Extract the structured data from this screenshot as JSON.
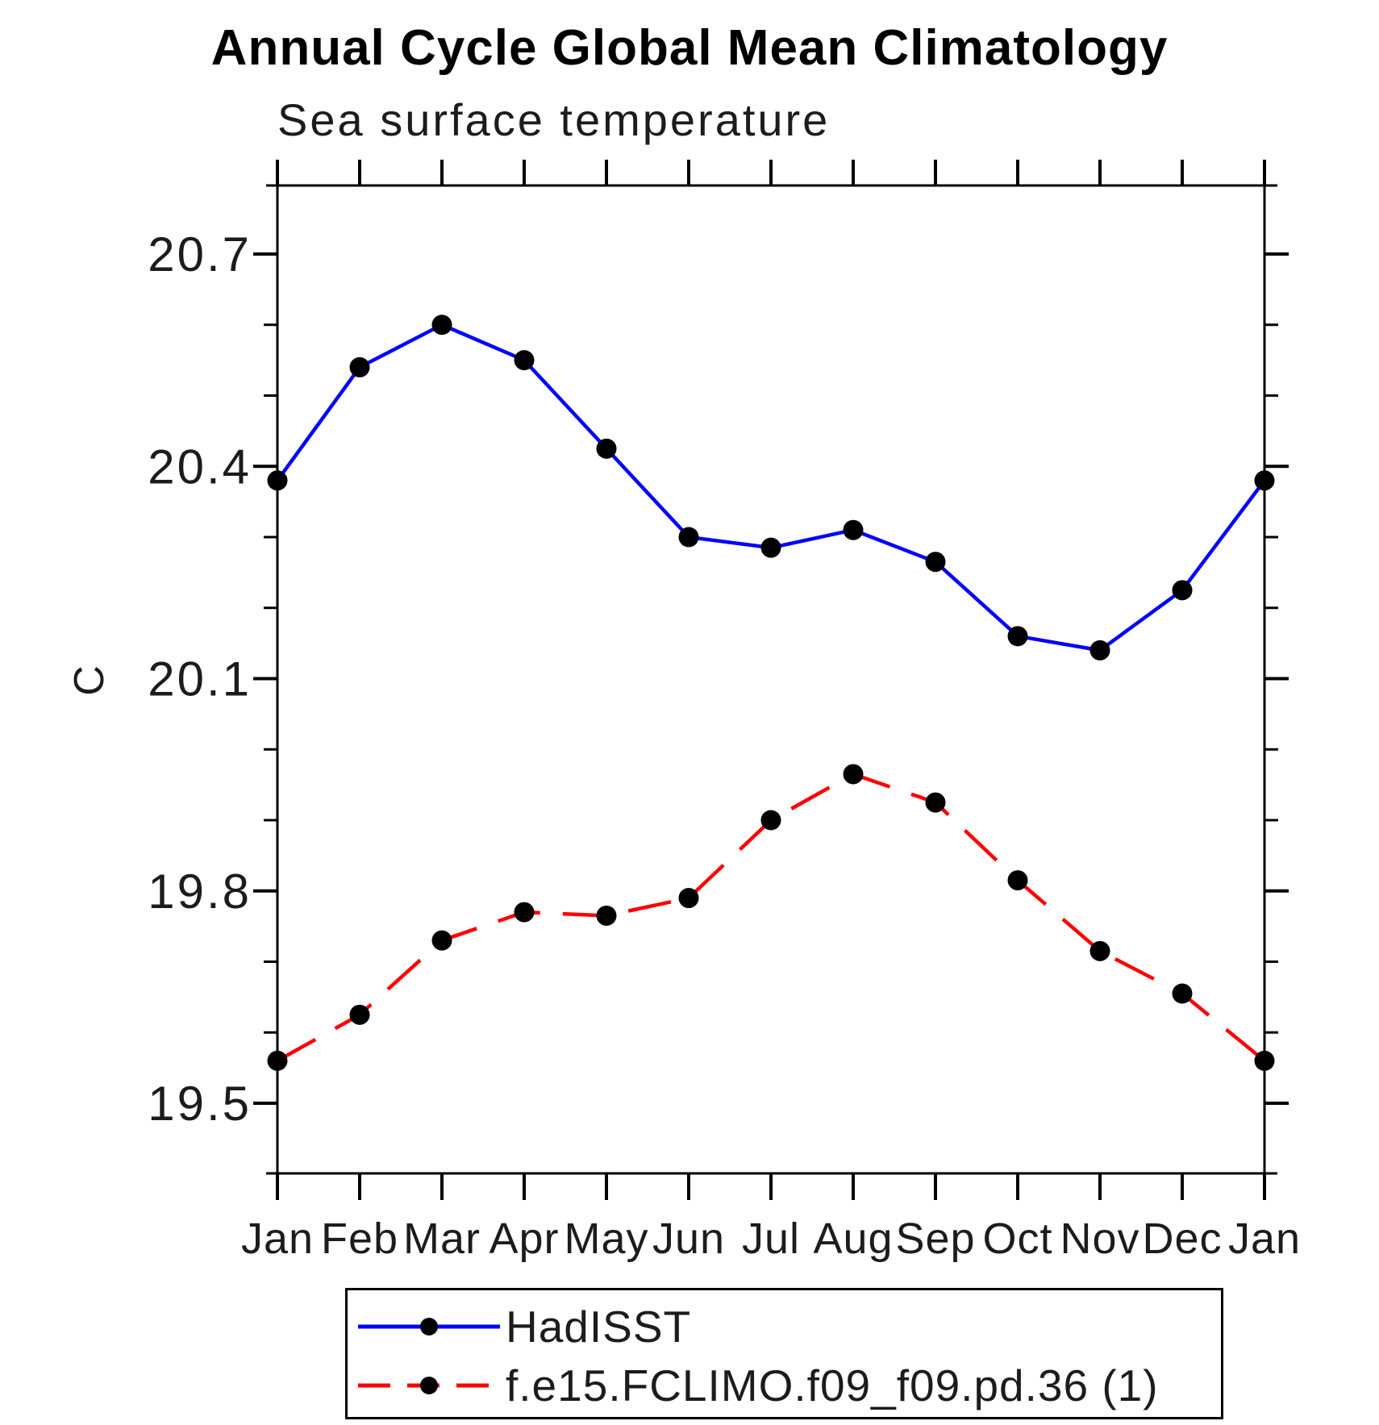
{
  "title": "Annual Cycle Global Mean Climatology",
  "subtitle": "Sea surface temperature",
  "y_axis": {
    "label": "C",
    "tick_labels": [
      "20.7",
      "20.4",
      "20.1",
      "19.8",
      "19.5"
    ]
  },
  "x_axis": {
    "tick_labels": [
      "Jan",
      "Feb",
      "Mar",
      "Apr",
      "May",
      "Jun",
      "Jul",
      "Aug",
      "Sep",
      "Oct",
      "Nov",
      "Dec",
      "Jan"
    ]
  },
  "legend": {
    "entries": [
      {
        "label": "HadISST",
        "line_style": "solid",
        "line_color": "#0000ff",
        "marker": "filled-circle"
      },
      {
        "label": "f.e15.FCLIMO.f09_f09.pd.36 (1)",
        "line_style": "dashed",
        "line_color": "#ff0000",
        "marker": "filled-circle"
      }
    ],
    "position": "bottom"
  },
  "chart_data": {
    "type": "line",
    "title": "Annual Cycle Global Mean Climatology",
    "subtitle": "Sea surface temperature",
    "categories": [
      "Jan",
      "Feb",
      "Mar",
      "Apr",
      "May",
      "Jun",
      "Jul",
      "Aug",
      "Sep",
      "Oct",
      "Nov",
      "Dec",
      "Jan"
    ],
    "series": [
      {
        "name": "HadISST",
        "color": "#0000ff",
        "style": "solid",
        "values": [
          20.38,
          20.54,
          20.6,
          20.55,
          20.425,
          20.3,
          20.285,
          20.31,
          20.265,
          20.16,
          20.14,
          20.225,
          20.38
        ]
      },
      {
        "name": "f.e15.FCLIMO.f09_f09.pd.36 (1)",
        "color": "#ff0000",
        "style": "dashed",
        "values": [
          19.56,
          19.625,
          19.73,
          19.77,
          19.765,
          19.79,
          19.9,
          19.965,
          19.925,
          19.815,
          19.715,
          19.655,
          19.56
        ]
      }
    ],
    "xlabel": "",
    "ylabel": "C",
    "ylim": [
      19.4,
      20.8
    ],
    "yticks": [
      19.5,
      19.8,
      20.1,
      20.4,
      20.7
    ],
    "minor_tick_interval": 0.1,
    "marker": "filled-circle",
    "marker_color": "#000000",
    "grid": false,
    "legend_position": "bottom"
  }
}
